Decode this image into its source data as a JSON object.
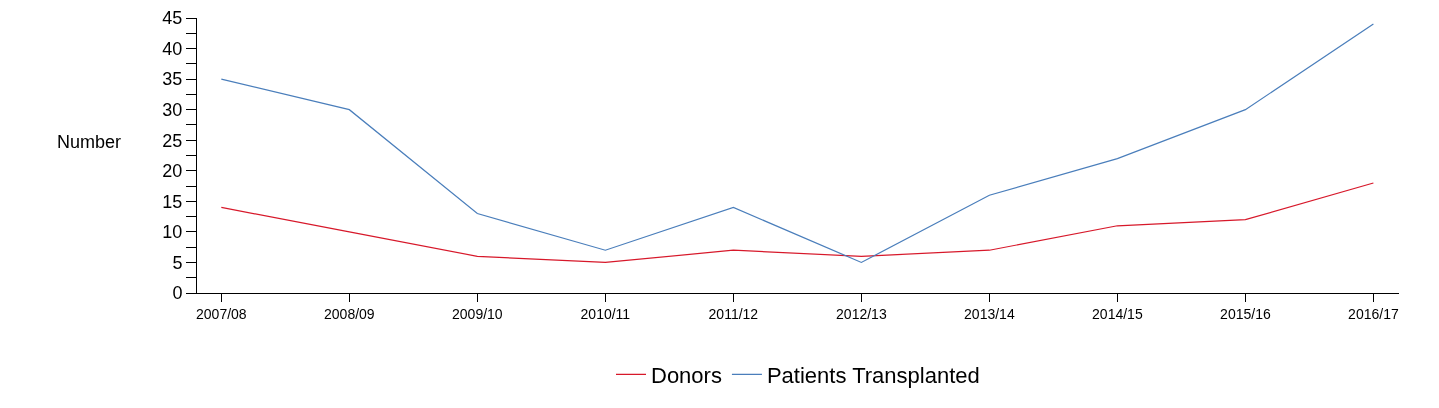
{
  "chart_data": {
    "type": "line",
    "ylabel": "Number",
    "categories": [
      "2007/08",
      "2008/09",
      "2009/10",
      "2010/11",
      "2011/12",
      "2012/13",
      "2013/14",
      "2014/15",
      "2015/16",
      "2016/17"
    ],
    "series": [
      {
        "name": "Donors",
        "color": "#d7182a",
        "values": [
          14,
          10,
          6,
          5,
          7,
          6,
          7,
          11,
          12,
          18
        ]
      },
      {
        "name": "Patients Transplanted",
        "color": "#4a7ebb",
        "values": [
          35,
          30,
          13,
          7,
          14,
          5,
          16,
          22,
          30,
          44
        ]
      }
    ],
    "ylim": [
      0,
      45
    ],
    "yticks": [
      0,
      {
        "value": 2.5,
        "label": null
      },
      5,
      {
        "value": 7.5,
        "label": null
      },
      10,
      {
        "value": 12.5,
        "label": null
      },
      15,
      {
        "value": 17.5,
        "label": null
      },
      20,
      {
        "value": 22.5,
        "label": null
      },
      25,
      {
        "value": 27.5,
        "label": null
      },
      30,
      {
        "value": 32.5,
        "label": null
      },
      35,
      {
        "value": 37.5,
        "label": null
      },
      40,
      {
        "value": 42.5,
        "label": null
      },
      45
    ],
    "grid": false,
    "legend": "bottom",
    "marker": "none",
    "line_style": "solid"
  }
}
